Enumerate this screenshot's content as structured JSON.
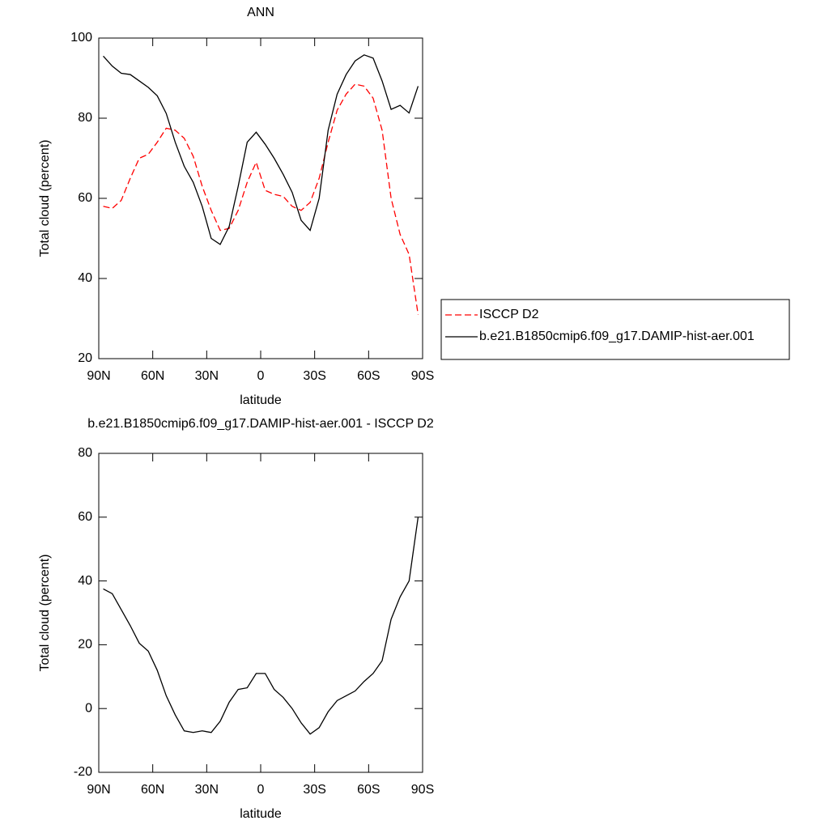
{
  "chart_data": [
    {
      "type": "line",
      "title": "ANN",
      "xlabel": "latitude",
      "ylabel": "Total cloud (percent)",
      "xlim": [
        90,
        -90
      ],
      "xticks": [
        {
          "value": 90,
          "label": "90N"
        },
        {
          "value": 60,
          "label": "60N"
        },
        {
          "value": 30,
          "label": "30N"
        },
        0,
        {
          "value": -30,
          "label": "30S"
        },
        {
          "value": -60,
          "label": "60S"
        },
        {
          "value": -90,
          "label": "90S"
        }
      ],
      "ylim": [
        20,
        100
      ],
      "yticks": [
        20,
        40,
        60,
        80,
        100
      ],
      "x": [
        87.5,
        82.5,
        77.5,
        72.5,
        67.5,
        62.5,
        57.5,
        52.5,
        47.5,
        42.5,
        37.5,
        32.5,
        27.5,
        22.5,
        17.5,
        12.5,
        7.5,
        2.5,
        -2.5,
        -7.5,
        -12.5,
        -17.5,
        -22.5,
        -27.5,
        -32.5,
        -37.5,
        -42.5,
        -47.5,
        -52.5,
        -57.5,
        -62.5,
        -67.5,
        -72.5,
        -77.5,
        -82.5,
        -87.5
      ],
      "series": [
        {
          "name": "ISCCP D2",
          "color": "#ff0000",
          "line_style": "dashed",
          "values": [
            58,
            57.5,
            59.5,
            65,
            70,
            71,
            74,
            77.5,
            77,
            75,
            70.5,
            63,
            57,
            52,
            52.5,
            57,
            64,
            69,
            62,
            61,
            60.5,
            58,
            57,
            59,
            65,
            74,
            82,
            86,
            88.5,
            88,
            85,
            77,
            60,
            51,
            46,
            31
          ]
        },
        {
          "name": "b.e21.B1850cmip6.f09_g17.DAMIP-hist-aer.001",
          "color": "#000000",
          "line_style": "solid",
          "values": [
            95.5,
            93,
            91.2,
            90.9,
            89.3,
            87.7,
            85.6,
            81.2,
            74,
            68,
            64,
            58,
            50,
            48.5,
            53,
            63,
            74,
            76.5,
            73.5,
            70,
            66,
            61.5,
            54.5,
            52,
            60,
            77,
            86,
            90.9,
            94.3,
            95.8,
            95,
            89.3,
            82.2,
            83.2,
            81.3,
            88
          ]
        }
      ]
    },
    {
      "type": "line",
      "title": "b.e21.B1850cmip6.f09_g17.DAMIP-hist-aer.001 - ISCCP D2",
      "xlabel": "latitude",
      "ylabel": "Total cloud (percent)",
      "xlim": [
        90,
        -90
      ],
      "xticks": [
        {
          "value": 90,
          "label": "90N"
        },
        {
          "value": 60,
          "label": "60N"
        },
        {
          "value": 30,
          "label": "30N"
        },
        0,
        {
          "value": -30,
          "label": "30S"
        },
        {
          "value": -60,
          "label": "60S"
        },
        {
          "value": -90,
          "label": "90S"
        }
      ],
      "ylim": [
        -20,
        80
      ],
      "yticks": [
        -20,
        0,
        20,
        40,
        60,
        80
      ],
      "x": [
        87.5,
        82.5,
        77.5,
        72.5,
        67.5,
        62.5,
        57.5,
        52.5,
        47.5,
        42.5,
        37.5,
        32.5,
        27.5,
        22.5,
        17.5,
        12.5,
        7.5,
        2.5,
        -2.5,
        -7.5,
        -12.5,
        -17.5,
        -22.5,
        -27.5,
        -32.5,
        -37.5,
        -42.5,
        -47.5,
        -52.5,
        -57.5,
        -62.5,
        -67.5,
        -72.5,
        -77.5,
        -82.5,
        -87.5
      ],
      "series": [
        {
          "color": "#000000",
          "line_style": "solid",
          "values": [
            37.5,
            36,
            31,
            26,
            20.5,
            18,
            12,
            4,
            -2,
            -7,
            -7.5,
            -7,
            -7.5,
            -4,
            2,
            6,
            6.5,
            11,
            11,
            6,
            3.5,
            0,
            -4.5,
            -8,
            -6,
            -1,
            2.5,
            4,
            5.5,
            8.5,
            11,
            15,
            28,
            35,
            40,
            60
          ]
        }
      ]
    }
  ]
}
